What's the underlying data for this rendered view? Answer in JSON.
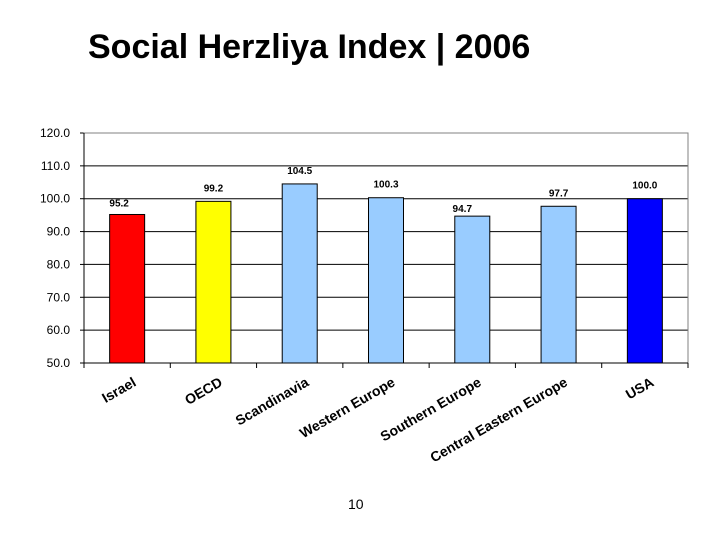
{
  "slide": {
    "title": "Social Herzliya Index | 2006",
    "page_number": "10"
  },
  "chart_data": {
    "type": "bar",
    "title": "",
    "xlabel": "",
    "ylabel": "",
    "categories": [
      "Israel",
      "OECD",
      "Scandinavia",
      "Western Europe",
      "Southern Europe",
      "Central Eastern Europe",
      "USA"
    ],
    "values": [
      95.2,
      99.2,
      104.5,
      100.3,
      94.7,
      97.7,
      100.0
    ],
    "data_labels": [
      "95.2",
      "99.2",
      "104.5",
      "100.3",
      "94.7",
      "97.7",
      "100.0"
    ],
    "bar_colors": [
      "#ff0000",
      "#ffff00",
      "#99ccff",
      "#99ccff",
      "#99ccff",
      "#99ccff",
      "#0000ff"
    ],
    "ylim": [
      50,
      120
    ],
    "yticks": [
      50,
      60,
      70,
      80,
      90,
      100,
      110,
      120
    ],
    "ytick_labels": [
      "50.0",
      "60.0",
      "70.0",
      "80.0",
      "90.0",
      "100.0",
      "110.0",
      "120.0"
    ],
    "grid": true,
    "legend": "none"
  }
}
